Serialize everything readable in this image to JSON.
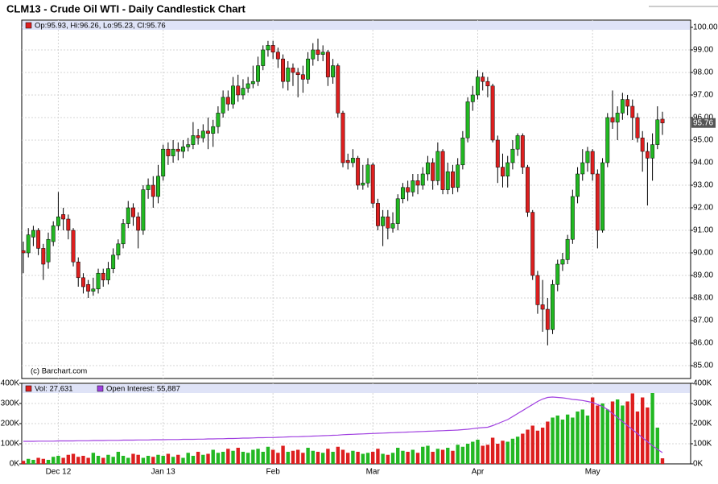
{
  "chart_data": {
    "type": "candlestick",
    "title": "CLM13 - Crude Oil WTI - Daily Candlestick Chart",
    "legend": "Op:95.93, Hi:96.26, Lo:95.23, Cl:95.76",
    "watermark": "(c) Barchart.com",
    "up_color": "#22b822",
    "down_color": "#dd1f1f",
    "grid": true,
    "categories": [
      null,
      null,
      null,
      null,
      null,
      null,
      null,
      "Dec 12",
      null,
      null,
      null,
      null,
      null,
      null,
      null,
      null,
      null,
      null,
      null,
      null,
      null,
      null,
      null,
      null,
      null,
      null,
      null,
      null,
      "Jan 13",
      null,
      null,
      null,
      null,
      null,
      null,
      null,
      null,
      null,
      null,
      null,
      null,
      null,
      null,
      null,
      null,
      null,
      null,
      null,
      null,
      null,
      "Feb",
      null,
      null,
      null,
      null,
      null,
      null,
      null,
      null,
      null,
      null,
      null,
      null,
      null,
      null,
      null,
      null,
      null,
      null,
      null,
      "Mar",
      null,
      null,
      null,
      null,
      null,
      null,
      null,
      null,
      null,
      null,
      null,
      null,
      null,
      null,
      null,
      null,
      null,
      null,
      null,
      null,
      "Apr",
      null,
      null,
      null,
      null,
      null,
      null,
      null,
      null,
      null,
      null,
      null,
      null,
      null,
      null,
      null,
      null,
      null,
      null,
      null,
      null,
      null,
      null,
      "May",
      null,
      null,
      null,
      null,
      null,
      null,
      null,
      null,
      null,
      null,
      null,
      null,
      null,
      null
    ],
    "open": [
      90.1,
      90.0,
      90.7,
      91.0,
      90.2,
      89.6,
      90.5,
      91.2,
      91.7,
      91.5,
      91.0,
      89.6,
      88.9,
      88.6,
      88.3,
      88.4,
      89.1,
      88.8,
      89.3,
      89.9,
      90.4,
      91.3,
      92.0,
      91.6,
      91.0,
      92.8,
      93.0,
      92.5,
      93.4,
      94.6,
      94.3,
      94.6,
      94.5,
      94.7,
      94.8,
      95.2,
      95.1,
      95.4,
      95.3,
      95.6,
      96.2,
      96.9,
      96.6,
      97.4,
      97.0,
      97.3,
      97.5,
      97.6,
      98.3,
      99.0,
      99.2,
      98.9,
      98.6,
      97.6,
      98.2,
      98.0,
      97.9,
      97.7,
      98.6,
      99.0,
      98.8,
      98.9,
      97.8,
      98.3,
      96.2,
      94.1,
      94.0,
      94.2,
      93.0,
      93.1,
      93.9,
      92.2,
      91.2,
      91.6,
      91.1,
      91.3,
      92.4,
      92.9,
      92.7,
      93.2,
      93.0,
      93.5,
      94.0,
      93.2,
      94.5,
      92.8,
      93.6,
      92.9,
      93.9,
      95.1,
      96.7,
      97.0,
      97.8,
      97.6,
      97.4,
      95.0,
      93.8,
      93.4,
      94.0,
      94.6,
      95.2,
      93.8,
      91.8,
      89.0,
      87.7,
      87.5,
      86.6,
      88.6,
      89.5,
      89.7,
      90.6,
      92.5,
      93.5,
      94.0,
      94.5,
      93.5,
      91.0,
      94.0,
      96.0,
      95.8,
      96.2,
      96.8,
      96.5,
      96.0,
      95.1,
      94.5,
      94.2,
      94.8,
      95.93
    ],
    "high": [
      90.5,
      91.1,
      91.2,
      91.1,
      90.4,
      90.9,
      91.4,
      92.7,
      92.0,
      91.7,
      91.1,
      89.8,
      89.1,
      88.8,
      88.9,
      89.3,
      89.3,
      89.6,
      90.2,
      90.6,
      91.5,
      92.3,
      92.2,
      91.8,
      93.0,
      93.3,
      93.4,
      93.9,
      94.8,
      94.9,
      95.0,
      94.9,
      95.0,
      95.1,
      95.8,
      95.5,
      95.7,
      96.0,
      95.9,
      96.5,
      97.2,
      97.2,
      97.8,
      97.9,
      97.7,
      97.8,
      98.3,
      98.7,
      99.2,
      99.4,
      99.4,
      99.1,
      98.8,
      98.5,
      98.4,
      98.2,
      98.3,
      98.9,
      99.3,
      99.5,
      99.2,
      99.0,
      98.6,
      98.4,
      96.3,
      94.4,
      94.6,
      94.3,
      93.9,
      94.2,
      94.0,
      92.4,
      91.9,
      91.9,
      91.8,
      92.6,
      93.1,
      93.2,
      93.5,
      93.5,
      93.8,
      94.3,
      94.2,
      94.9,
      94.6,
      94.0,
      93.9,
      94.2,
      95.4,
      96.9,
      97.4,
      98.1,
      98.0,
      97.8,
      97.5,
      95.2,
      94.4,
      94.3,
      95.0,
      95.3,
      95.3,
      93.9,
      91.9,
      89.2,
      88.8,
      88.0,
      88.8,
      89.7,
      90.0,
      90.8,
      92.8,
      93.8,
      94.6,
      94.7,
      94.6,
      93.7,
      94.2,
      96.2,
      97.2,
      96.5,
      97.1,
      97.0,
      96.8,
      96.2,
      95.4,
      94.9,
      95.3,
      96.5,
      96.26
    ],
    "low": [
      89.1,
      89.8,
      90.3,
      89.9,
      88.8,
      89.3,
      90.3,
      91.0,
      91.0,
      90.6,
      89.4,
      88.5,
      88.2,
      88.0,
      88.1,
      88.2,
      88.5,
      88.6,
      89.1,
      89.7,
      90.2,
      91.1,
      91.2,
      90.2,
      90.8,
      92.4,
      92.0,
      92.2,
      93.2,
      93.9,
      94.0,
      94.1,
      94.2,
      94.5,
      94.6,
      94.8,
      94.9,
      94.6,
      94.7,
      95.3,
      96.0,
      96.3,
      96.4,
      96.7,
      96.8,
      97.1,
      97.3,
      97.4,
      98.1,
      98.7,
      98.6,
      98.2,
      97.3,
      97.2,
      97.4,
      96.9,
      97.1,
      97.5,
      98.3,
      98.5,
      98.5,
      97.4,
      97.5,
      96.0,
      93.8,
      93.7,
      93.8,
      92.8,
      92.8,
      92.9,
      92.0,
      91.0,
      90.3,
      90.6,
      90.9,
      91.0,
      92.2,
      92.3,
      92.5,
      92.6,
      92.8,
      93.2,
      92.8,
      93.0,
      92.6,
      92.6,
      92.6,
      92.7,
      93.7,
      94.9,
      96.3,
      96.8,
      97.2,
      96.9,
      94.9,
      93.1,
      92.9,
      92.9,
      93.7,
      94.3,
      93.5,
      91.6,
      88.8,
      87.3,
      86.5,
      85.9,
      86.4,
      88.3,
      89.2,
      89.5,
      90.4,
      92.2,
      93.2,
      93.6,
      93.2,
      90.2,
      90.9,
      93.8,
      95.5,
      95.0,
      95.9,
      96.1,
      95.0,
      94.9,
      93.6,
      92.1,
      93.2,
      94.6,
      95.23
    ],
    "close": [
      90.0,
      90.8,
      91.0,
      90.2,
      89.5,
      90.6,
      91.2,
      91.6,
      91.5,
      91.0,
      89.6,
      88.9,
      88.5,
      88.3,
      88.4,
      89.1,
      88.8,
      89.3,
      89.9,
      90.4,
      91.3,
      92.0,
      91.6,
      91.0,
      92.8,
      93.0,
      92.5,
      93.4,
      94.6,
      94.3,
      94.6,
      94.5,
      94.7,
      94.8,
      95.2,
      95.1,
      95.4,
      95.3,
      95.6,
      96.2,
      96.9,
      96.6,
      97.4,
      97.0,
      97.3,
      97.5,
      97.6,
      98.3,
      99.0,
      99.2,
      98.9,
      98.6,
      97.6,
      98.2,
      98.0,
      97.9,
      97.7,
      98.6,
      99.0,
      98.8,
      98.9,
      97.8,
      98.3,
      96.2,
      94.0,
      94.0,
      94.2,
      93.0,
      93.1,
      93.9,
      92.2,
      91.2,
      91.6,
      91.1,
      91.3,
      92.4,
      92.9,
      92.7,
      93.2,
      93.0,
      93.5,
      94.0,
      93.2,
      94.5,
      92.8,
      93.6,
      92.9,
      93.9,
      95.1,
      96.7,
      97.0,
      97.8,
      97.6,
      97.4,
      95.0,
      93.8,
      93.4,
      94.0,
      94.6,
      95.2,
      93.8,
      91.8,
      89.0,
      87.7,
      87.5,
      86.6,
      88.6,
      89.5,
      89.7,
      90.6,
      92.5,
      93.5,
      94.0,
      94.5,
      93.5,
      91.0,
      94.0,
      96.0,
      95.8,
      96.2,
      96.8,
      96.5,
      96.0,
      95.1,
      94.5,
      94.2,
      94.8,
      95.9,
      95.76
    ],
    "ylim": [
      84.43,
      100.32
    ],
    "yticks": [
      {
        "value": 85,
        "label": "85.00"
      },
      {
        "value": 86,
        "label": "86.00"
      },
      {
        "value": 87,
        "label": "87.00"
      },
      {
        "value": 88,
        "label": "88.00"
      },
      {
        "value": 89,
        "label": "89.00"
      },
      {
        "value": 90,
        "label": "90.00"
      },
      {
        "value": 91,
        "label": "91.00"
      },
      {
        "value": 92,
        "label": "92.00"
      },
      {
        "value": 93,
        "label": "93.00"
      },
      {
        "value": 94,
        "label": "94.00"
      },
      {
        "value": 95,
        "label": "95.00"
      },
      {
        "value": 96,
        "label": "96.00"
      },
      {
        "value": 97,
        "label": "97.00"
      },
      {
        "value": 98,
        "label": "98.00"
      },
      {
        "value": 99,
        "label": "99.00"
      },
      {
        "value": 100,
        "label": "100.00"
      }
    ],
    "volume": {
      "ylim": [
        0,
        400000
      ],
      "yticks": [
        {
          "value": 0,
          "label": "0K"
        },
        {
          "value": 100000,
          "label": "100K"
        },
        {
          "value": 200000,
          "label": "200K"
        },
        {
          "value": 300000,
          "label": "300K"
        },
        {
          "value": 400000,
          "label": "400K"
        }
      ],
      "series": [
        {
          "name": "Vol: 27,631",
          "color": "#dd1f1f",
          "values": [
            15000,
            25000,
            20000,
            30000,
            25000,
            20000,
            35000,
            40000,
            30000,
            45000,
            50000,
            35000,
            40000,
            30000,
            55000,
            40000,
            30000,
            45000,
            35000,
            60000,
            40000,
            30000,
            50000,
            45000,
            30000,
            40000,
            35000,
            45000,
            40000,
            50000,
            35000,
            45000,
            30000,
            55000,
            40000,
            60000,
            45000,
            50000,
            70000,
            55000,
            60000,
            75000,
            65000,
            80000,
            60000,
            55000,
            70000,
            75000,
            60000,
            85000,
            70000,
            55000,
            90000,
            60000,
            65000,
            70000,
            55000,
            80000,
            65000,
            60000,
            55000,
            75000,
            60000,
            85000,
            70000,
            55000,
            65000,
            60000,
            50000,
            55000,
            60000,
            75000,
            50000,
            45000,
            55000,
            80000,
            65000,
            60000,
            70000,
            55000,
            85000,
            90000,
            60000,
            75000,
            70000,
            80000,
            65000,
            95000,
            85000,
            100000,
            110000,
            120000,
            90000,
            95000,
            130000,
            100000,
            115000,
            110000,
            125000,
            135000,
            150000,
            170000,
            190000,
            165000,
            180000,
            210000,
            230000,
            240000,
            220000,
            245000,
            230000,
            260000,
            270000,
            240000,
            330000,
            290000,
            300000,
            270000,
            310000,
            320000,
            290000,
            310000,
            350000,
            260000,
            330000,
            280000,
            355000,
            180000,
            27631
          ]
        },
        {
          "name": "Open Interest: 55,887",
          "color": "#a040e0",
          "values": [
            112000,
            112000,
            112000,
            113000,
            113000,
            113000,
            113000,
            114000,
            114000,
            114000,
            114000,
            115000,
            115000,
            115000,
            116000,
            116000,
            116000,
            117000,
            117000,
            117000,
            118000,
            118000,
            118000,
            119000,
            119000,
            119000,
            120000,
            120000,
            120000,
            121000,
            121000,
            121000,
            122000,
            122000,
            122000,
            123000,
            123000,
            124000,
            124000,
            125000,
            125000,
            126000,
            126000,
            127000,
            128000,
            128000,
            129000,
            130000,
            130000,
            131000,
            131000,
            132000,
            133000,
            134000,
            135000,
            135000,
            136000,
            137000,
            138000,
            139000,
            140000,
            141000,
            142000,
            143000,
            145000,
            146000,
            147000,
            148000,
            149000,
            150000,
            151000,
            152000,
            153000,
            154000,
            155000,
            156000,
            157000,
            158000,
            159000,
            160000,
            161000,
            162000,
            163000,
            164000,
            165000,
            166000,
            167000,
            168000,
            170000,
            172000,
            175000,
            178000,
            180000,
            182000,
            190000,
            200000,
            210000,
            220000,
            235000,
            250000,
            265000,
            280000,
            295000,
            310000,
            322000,
            330000,
            332000,
            330000,
            328000,
            325000,
            320000,
            318000,
            315000,
            310000,
            305000,
            295000,
            285000,
            270000,
            250000,
            230000,
            210000,
            190000,
            170000,
            150000,
            130000,
            110000,
            90000,
            72000,
            55887
          ]
        }
      ]
    }
  }
}
